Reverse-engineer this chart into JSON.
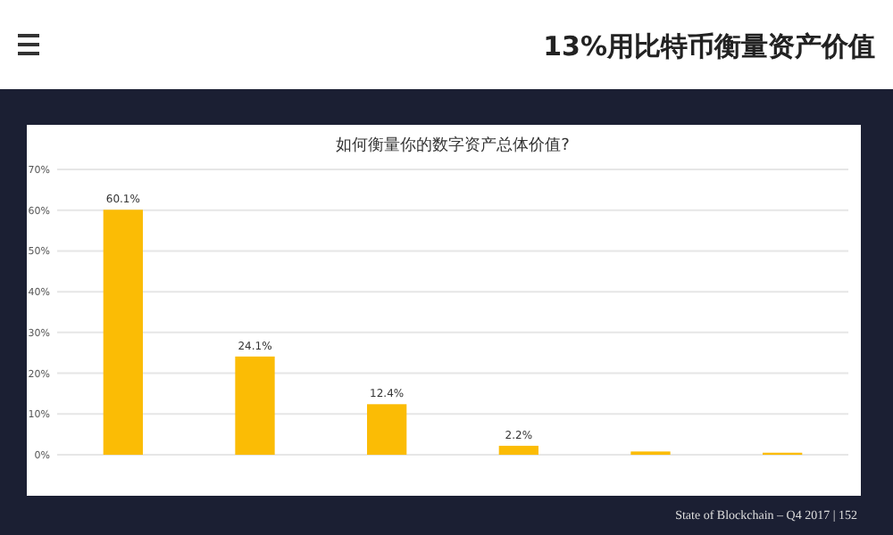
{
  "chart_data": {
    "type": "bar",
    "title": "如何衡量你的数字资产总体价值?",
    "subtitle": "13%用比特币衡量资产价值",
    "categories": [
      null,
      null,
      null,
      null,
      null,
      null
    ],
    "values": [
      60.1,
      24.1,
      12.4,
      2.2,
      0.8,
      0.5
    ],
    "value_labels": [
      "60.1%",
      "24.1%",
      "12.4%",
      "2.2%",
      null,
      null
    ],
    "color": "#fbbc05",
    "ylim": [
      0,
      70
    ],
    "yticks": [
      {
        "value": 0,
        "label": "0%"
      },
      {
        "value": 10,
        "label": "10%"
      },
      {
        "value": 20,
        "label": "20%"
      },
      {
        "value": 30,
        "label": "30%"
      },
      {
        "value": 40,
        "label": "40%"
      },
      {
        "value": 50,
        "label": "50%"
      },
      {
        "value": 60,
        "label": "60%"
      },
      {
        "value": 70,
        "label": "70%"
      }
    ],
    "grid": "y",
    "annotations": [
      "State of Blockchain – Q4 2017 | 152"
    ]
  }
}
